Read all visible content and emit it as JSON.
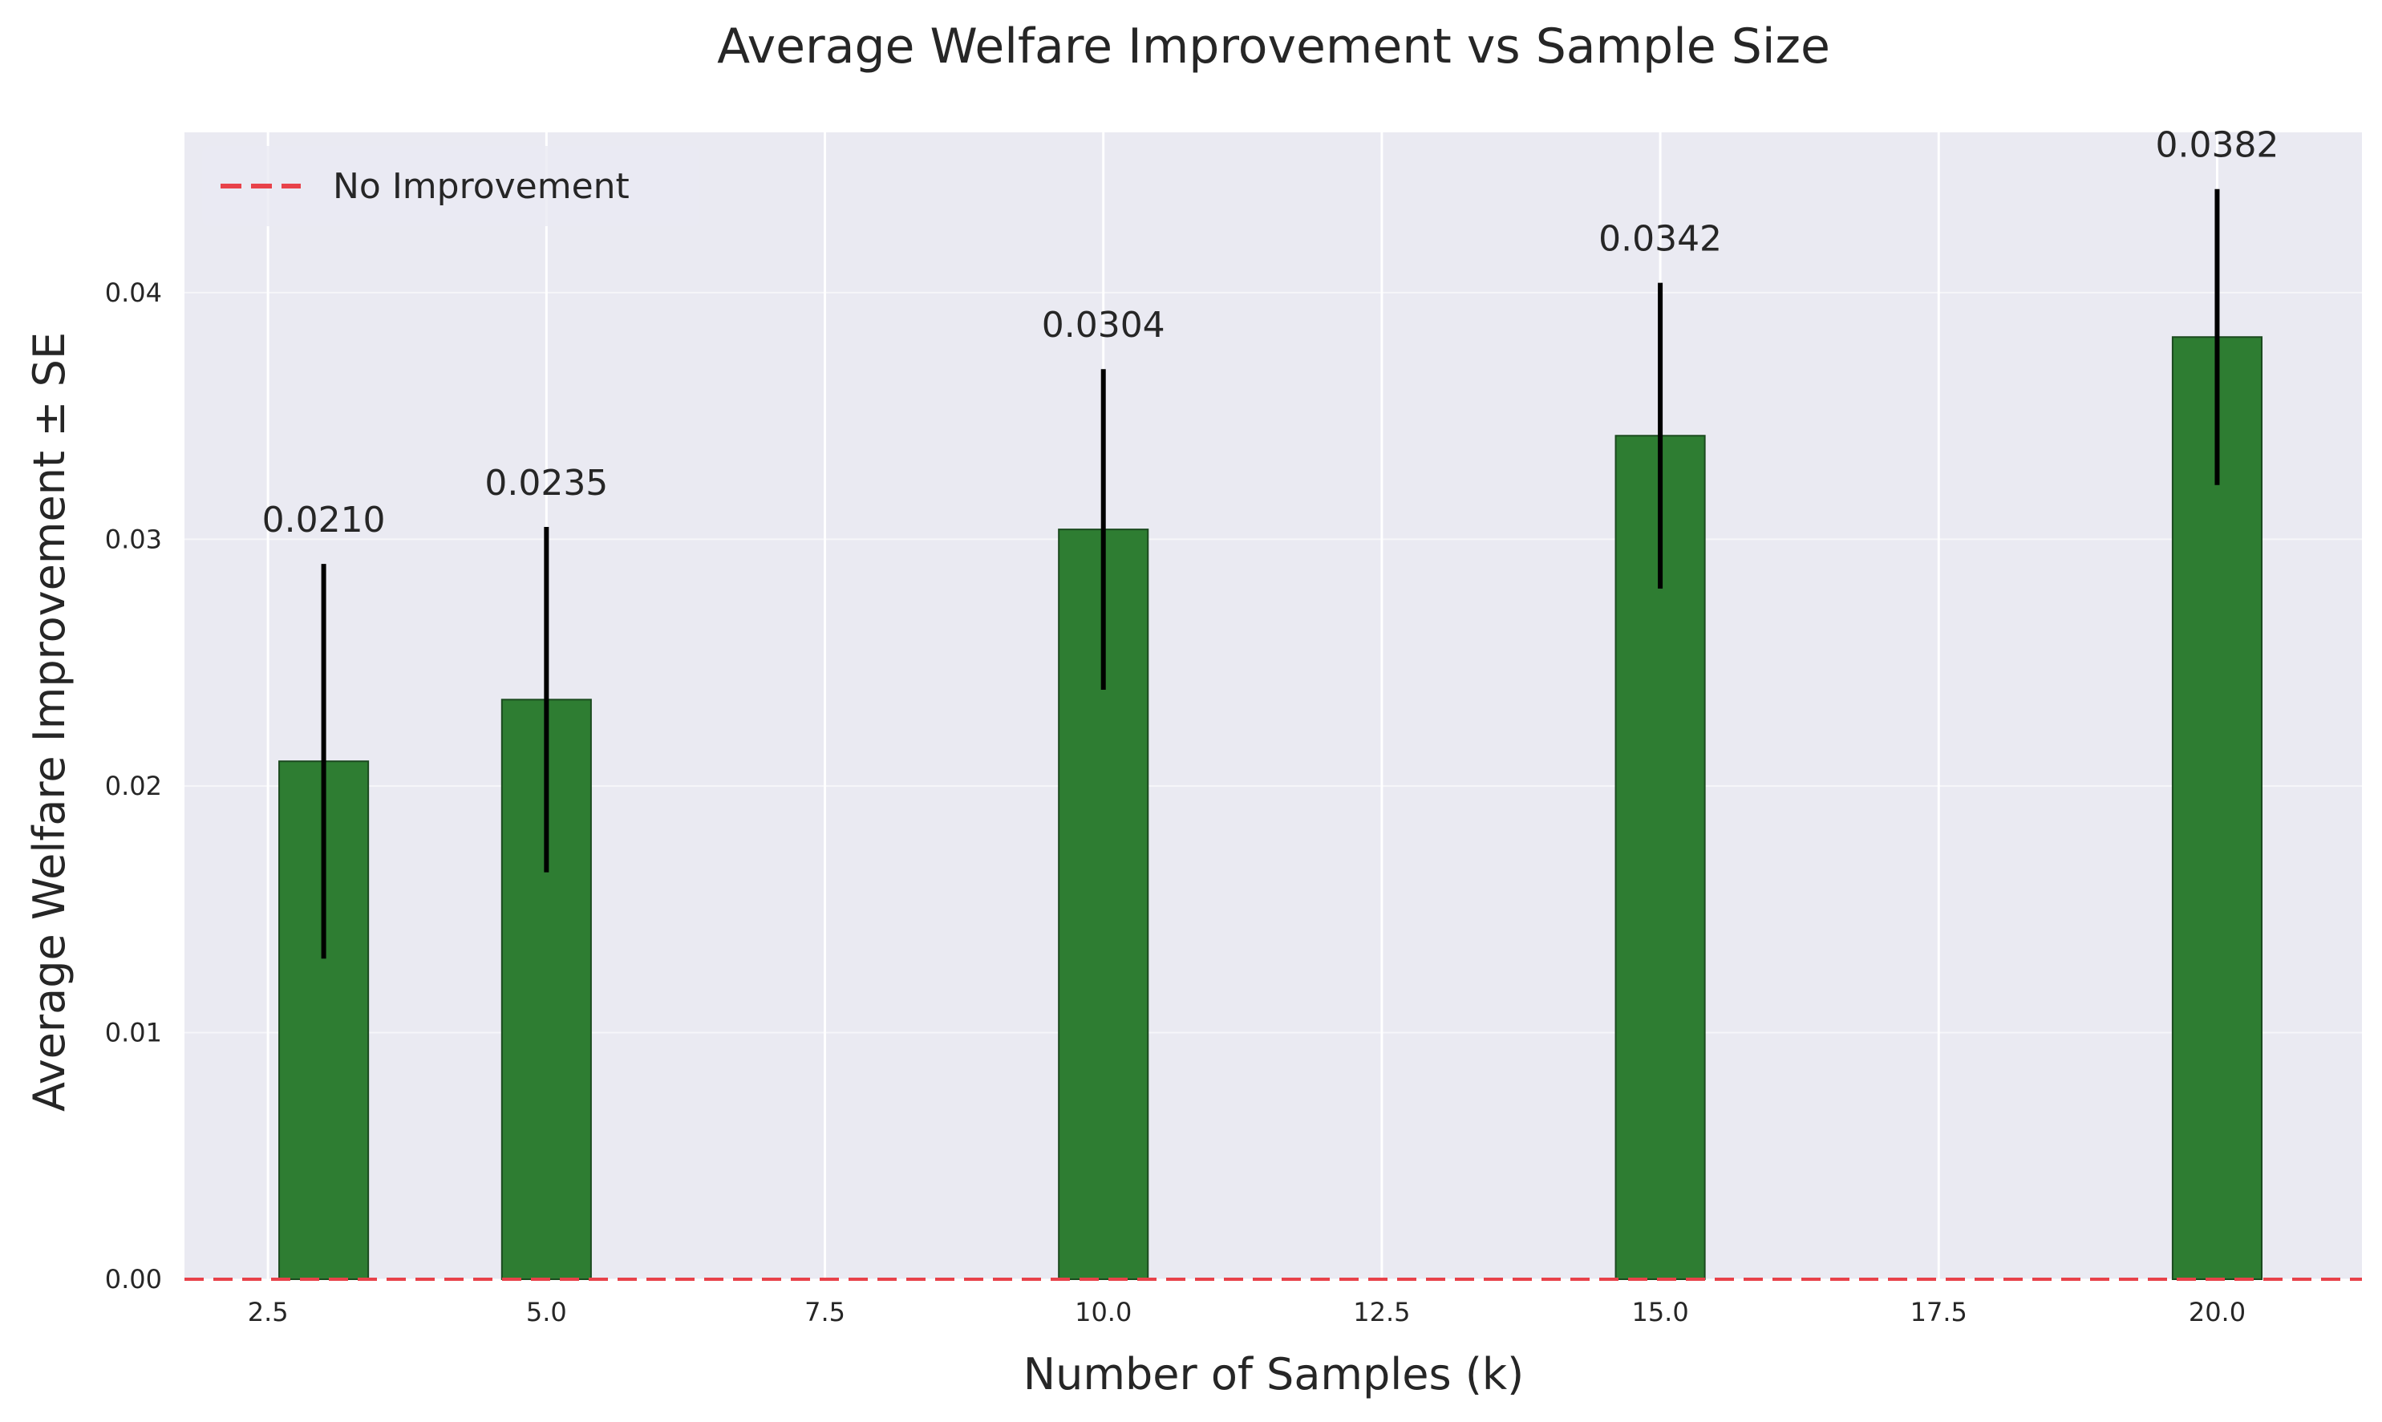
{
  "chart_data": {
    "type": "bar",
    "title": "Average Welfare Improvement vs Sample Size",
    "xlabel": "Number of Samples (k)",
    "ylabel": "Average Welfare Improvement ± SE",
    "x": [
      3,
      5,
      10,
      15,
      20
    ],
    "values": [
      0.021,
      0.0235,
      0.0304,
      0.0342,
      0.0382
    ],
    "errors": [
      0.008,
      0.007,
      0.0065,
      0.0062,
      0.006
    ],
    "data_labels": [
      "0.0210",
      "0.0235",
      "0.0304",
      "0.0342",
      "0.0382"
    ],
    "bar_width": 0.8,
    "xlim": [
      1.75,
      21.3
    ],
    "ylim": [
      0,
      0.0465
    ],
    "xticks": [
      2.5,
      5.0,
      7.5,
      10.0,
      12.5,
      15.0,
      17.5,
      20.0
    ],
    "xtick_labels": [
      "2.5",
      "5.0",
      "7.5",
      "10.0",
      "12.5",
      "15.0",
      "17.5",
      "20.0"
    ],
    "yticks": [
      0,
      0.01,
      0.02,
      0.03,
      0.04
    ],
    "ytick_labels": [
      "0.00",
      "0.01",
      "0.02",
      "0.03",
      "0.04"
    ],
    "reference_line": {
      "y": 0,
      "label": "No Improvement",
      "color": "#e8424a",
      "style": "dashed"
    },
    "legend": {
      "position": "top-left",
      "entries": [
        "No Improvement"
      ]
    },
    "grid": true,
    "colors": {
      "bar": "#2e7d32",
      "bar_edge": "#1b4a1f",
      "error": "#000000",
      "plot_bg": "#eaeaf2",
      "grid": "#ffffff"
    }
  }
}
